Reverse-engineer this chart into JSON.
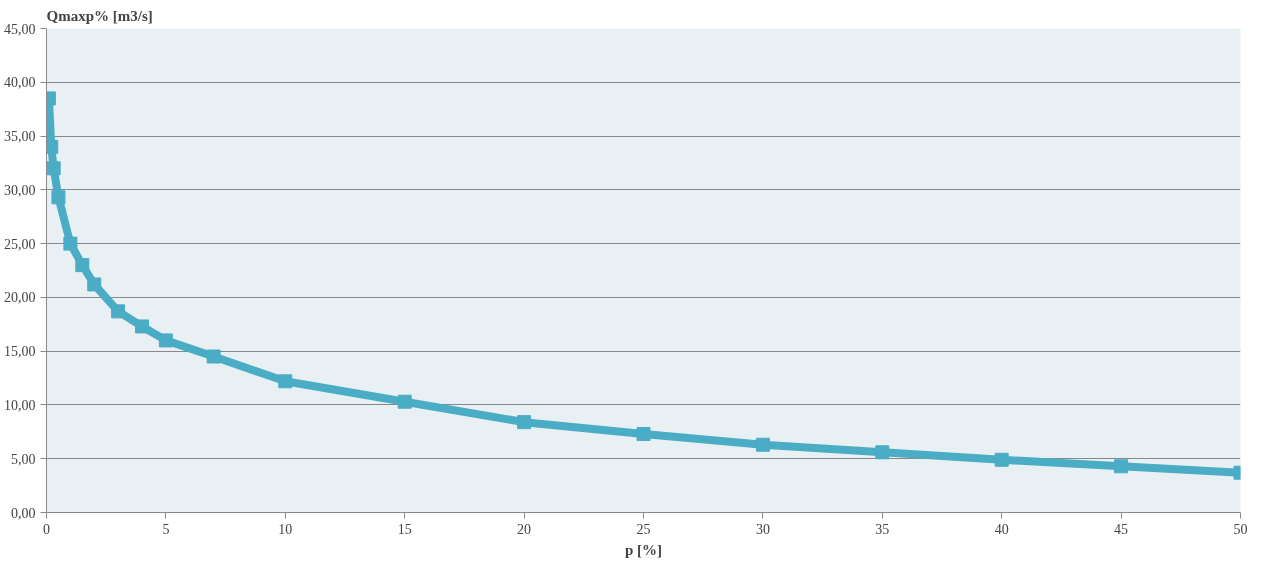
{
  "chart_data": {
    "type": "line",
    "ylabel": "Qmaxp% [m3/s]",
    "xlabel": "p [%]",
    "x": [
      0.1,
      0.2,
      0.3,
      0.5,
      1,
      1.5,
      2,
      3,
      4,
      5,
      7,
      10,
      15,
      20,
      25,
      30,
      35,
      40,
      45,
      50
    ],
    "series": [
      {
        "color": "#4bacc6",
        "values": [
          38.5,
          34.0,
          32.0,
          29.3,
          25.0,
          23.0,
          21.2,
          18.7,
          17.3,
          16.0,
          14.5,
          12.2,
          10.3,
          8.4,
          7.3,
          6.3,
          5.6,
          4.9,
          4.3,
          3.7
        ]
      }
    ],
    "xlim": [
      0,
      50
    ],
    "xticks": [
      0,
      5,
      10,
      15,
      20,
      25,
      30,
      35,
      40,
      45,
      50
    ],
    "ylim": [
      0,
      45
    ],
    "yticks": [
      {
        "value": 0,
        "label": "0,00"
      },
      {
        "value": 5,
        "label": "5,00"
      },
      {
        "value": 10,
        "label": "10,00"
      },
      {
        "value": 15,
        "label": "15,00"
      },
      {
        "value": 20,
        "label": "20,00"
      },
      {
        "value": 25,
        "label": "25,00"
      },
      {
        "value": 30,
        "label": "30,00"
      },
      {
        "value": 35,
        "label": "35,00"
      },
      {
        "value": 40,
        "label": "40,00"
      },
      {
        "value": 45,
        "label": "45,00"
      }
    ],
    "grid": "y",
    "marker": "square",
    "line_style": "solid"
  }
}
